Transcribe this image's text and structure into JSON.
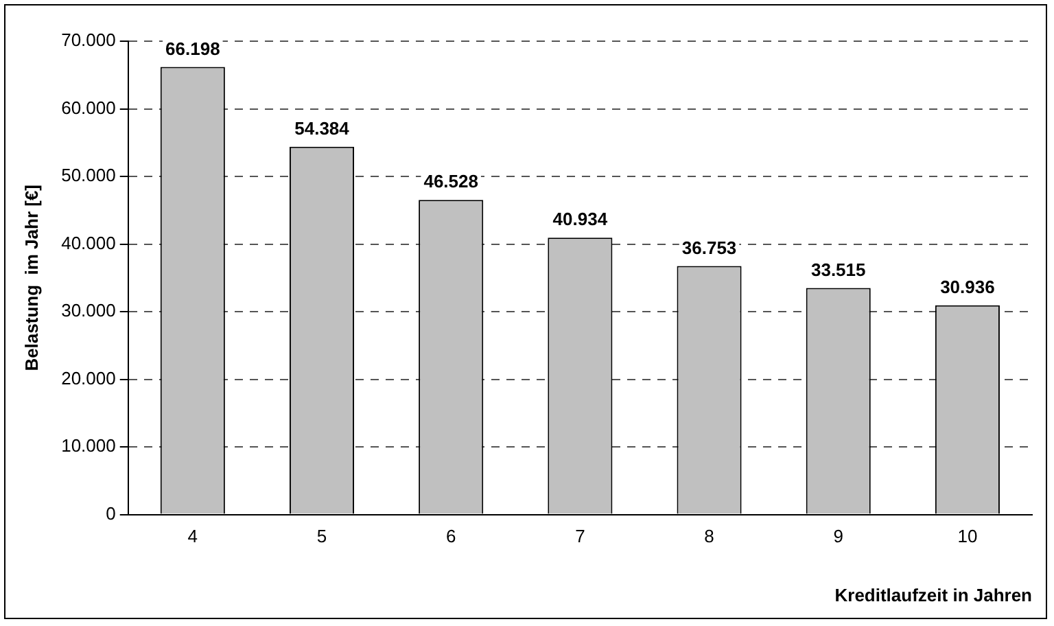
{
  "chart_data": {
    "type": "bar",
    "xlabel": "Kreditlaufzeit in Jahren",
    "ylabel": "Belastung  im Jahr [€]",
    "categories": [
      "4",
      "5",
      "6",
      "7",
      "8",
      "9",
      "10"
    ],
    "values": [
      66198,
      54384,
      46528,
      40934,
      36753,
      33515,
      30936
    ],
    "value_labels": [
      "66.198",
      "54.384",
      "46.528",
      "40.934",
      "36.753",
      "33.515",
      "30.936"
    ],
    "color": "#c0c0c0",
    "ylim": [
      0,
      70000
    ],
    "yticks": [
      {
        "value": 0,
        "label": "0"
      },
      {
        "value": 10000,
        "label": "10.000"
      },
      {
        "value": 20000,
        "label": "20.000"
      },
      {
        "value": 30000,
        "label": "30.000"
      },
      {
        "value": 40000,
        "label": "40.000"
      },
      {
        "value": 50000,
        "label": "50.000"
      },
      {
        "value": 60000,
        "label": "60.000"
      },
      {
        "value": 70000,
        "label": "70.000"
      }
    ],
    "grid": "y",
    "legend": false
  }
}
